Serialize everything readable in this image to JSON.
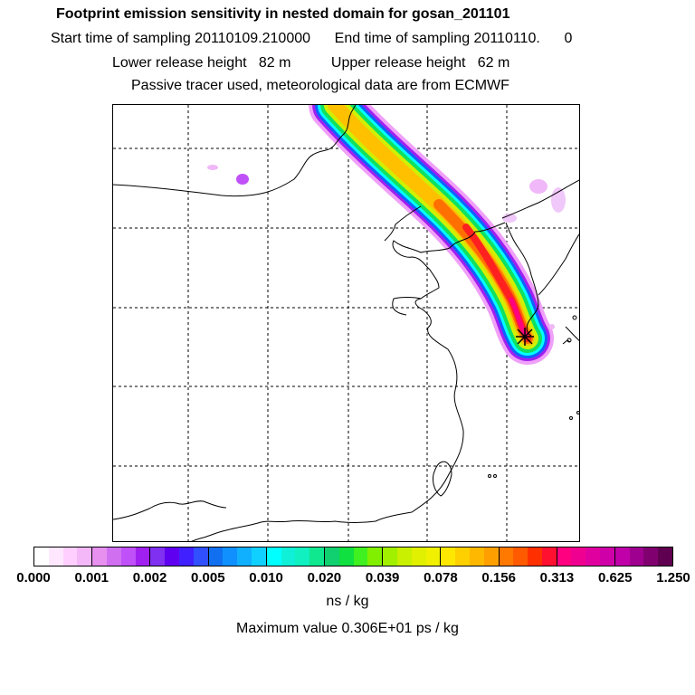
{
  "header": {
    "title": "Footprint emission sensitivity in nested domain for gosan_201101",
    "sampling_line": "Start time of sampling 20110109.210000      End time of sampling 20110110.      0",
    "height_line": "Lower release height   82 m          Upper release height   62 m",
    "tracer_line": "Passive tracer used, meteorological data are from ECMWF"
  },
  "map": {
    "receptor_marker": "station-star-icon"
  },
  "legend": {
    "tick_labels": [
      "0.000",
      "0.001",
      "0.002",
      "0.005",
      "0.010",
      "0.020",
      "0.039",
      "0.078",
      "0.156",
      "0.313",
      "0.625",
      "1.250"
    ],
    "colors": [
      "#ffffff",
      "#ffe8ff",
      "#ffd0ff",
      "#f4b8f8",
      "#e890f0",
      "#d070f0",
      "#c050f8",
      "#a020f0",
      "#8030f0",
      "#6000f0",
      "#4020ff",
      "#3050ff",
      "#1070f0",
      "#1090ff",
      "#10b0ff",
      "#10d0ff",
      "#00ffff",
      "#10f0d8",
      "#10f0c0",
      "#10e890",
      "#10d070",
      "#10e040",
      "#40f020",
      "#80f000",
      "#a0f000",
      "#c8f000",
      "#e0f000",
      "#f0f000",
      "#ffe800",
      "#ffd000",
      "#ffb800",
      "#ffa000",
      "#ff7800",
      "#ff5a00",
      "#ff3000",
      "#ff1030",
      "#ff0080",
      "#f00090",
      "#e000a0",
      "#d000a8",
      "#c000a8",
      "#a00090",
      "#800070",
      "#600050"
    ],
    "units": "ns / kg",
    "max_value_text": "Maximum value  0.306E+01 ps / kg"
  }
}
